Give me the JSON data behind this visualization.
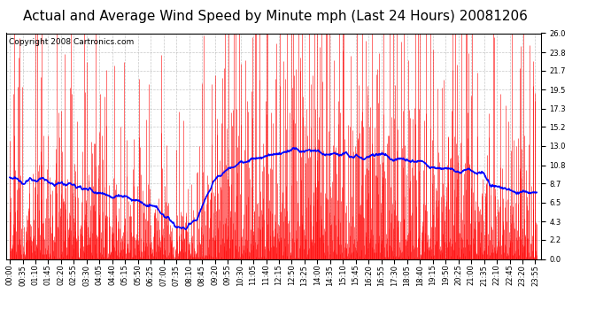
{
  "title": "Actual and Average Wind Speed by Minute mph (Last 24 Hours) 20081206",
  "copyright": "Copyright 2008 Cartronics.com",
  "y_ticks": [
    0.0,
    2.2,
    4.3,
    6.5,
    8.7,
    10.8,
    13.0,
    15.2,
    17.3,
    19.5,
    21.7,
    23.8,
    26.0
  ],
  "ylim": [
    0.0,
    26.0
  ],
  "background_color": "#ffffff",
  "plot_bg_color": "#ffffff",
  "actual_color": "#ff0000",
  "avg_color": "#0000ff",
  "grid_color": "#b0b0b0",
  "title_fontsize": 11,
  "copyright_fontsize": 6.5,
  "tick_label_fontsize": 6
}
